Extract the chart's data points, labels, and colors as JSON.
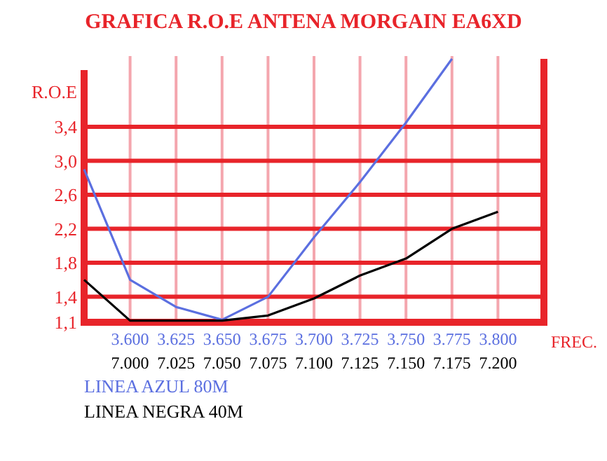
{
  "chart_data": {
    "type": "line",
    "title": "GRAFICA R.O.E  ANTENA MORGAIN EA6XD",
    "ylabel": "R.O.E",
    "xlabel": "FREC.",
    "categories": [
      null,
      "3.600",
      "3.625",
      "3.650",
      "3.675",
      "3.700",
      "3.725",
      "3.750",
      "3.775",
      "3.800",
      null
    ],
    "annotations": [
      "7.000",
      "7.025",
      "7.050",
      "7.075",
      "7.100",
      "7.125",
      "7.150",
      "7.175",
      "7.200"
    ],
    "ylim": [
      1.1,
      4.2
    ],
    "yticks": [
      {
        "value": 1.1,
        "label": "1,1"
      },
      {
        "value": 1.4,
        "label": "1,4"
      },
      {
        "value": 1.8,
        "label": "1,8"
      },
      {
        "value": 2.2,
        "label": "2,2"
      },
      {
        "value": 2.6,
        "label": "2,6"
      },
      {
        "value": 3.0,
        "label": "3,0"
      },
      {
        "value": 3.4,
        "label": "3,4"
      }
    ],
    "grid": true,
    "legend": "bottom left",
    "marker": "none",
    "line_style": "solid",
    "series": [
      {
        "name": "LINEA AZUL 80M",
        "color": "#5b6fe0",
        "values": [
          2.9,
          1.6,
          1.28,
          1.13,
          1.4,
          2.1,
          2.75,
          3.45,
          4.2,
          null,
          null
        ]
      },
      {
        "name": "LINEA NEGRA 40M",
        "color": "#000000",
        "values": [
          1.6,
          1.12,
          1.12,
          1.12,
          1.18,
          1.38,
          1.65,
          1.85,
          2.2,
          2.4,
          null
        ]
      }
    ]
  }
}
